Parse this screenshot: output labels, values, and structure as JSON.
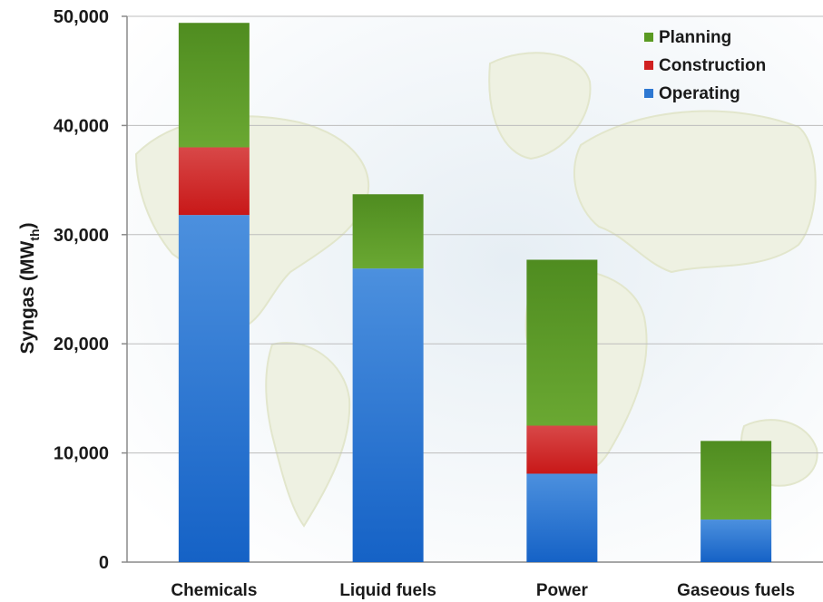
{
  "chart_data": {
    "type": "bar",
    "stacked": true,
    "categories": [
      "Chemicals",
      "Liquid fuels",
      "Power",
      "Gaseous fuels"
    ],
    "series": [
      {
        "name": "Operating",
        "values": [
          31800,
          26900,
          8100,
          3900
        ],
        "color": "#2e78d2"
      },
      {
        "name": "Construction",
        "values": [
          6200,
          0,
          4400,
          0
        ],
        "color": "#d02020"
      },
      {
        "name": "Planning",
        "values": [
          11400,
          6800,
          15200,
          7200
        ],
        "color": "#5a9a22"
      }
    ],
    "legend_order": [
      "Planning",
      "Construction",
      "Operating"
    ],
    "legend_position": "top-right",
    "ylabel": "Syngas (MW",
    "ylabel_sub": "th",
    "ylabel_end": ")",
    "xlabel": "",
    "ylim": [
      0,
      50000
    ],
    "yticks": [
      0,
      10000,
      20000,
      30000,
      40000,
      50000
    ],
    "ytick_labels": [
      "0",
      "10,000",
      "20,000",
      "30,000",
      "40,000",
      "50,000"
    ],
    "grid": true,
    "background": "world map"
  }
}
